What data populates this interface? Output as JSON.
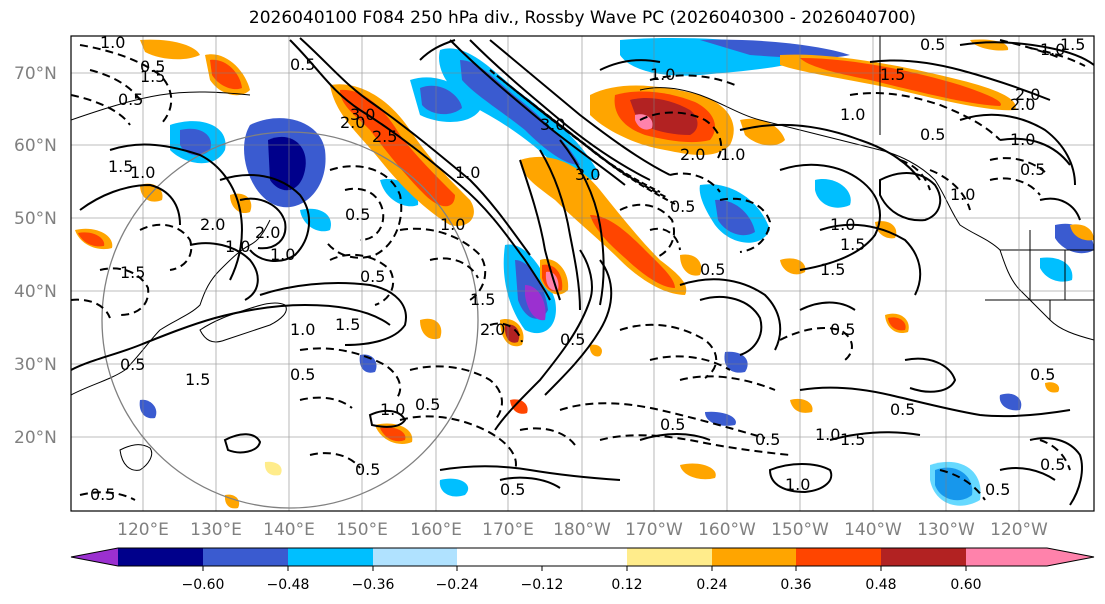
{
  "title": "2026040100 F084 250 hPa div., Rossby Wave PC (2026040300 - 2026040700)",
  "lat_labels": [
    "70°N",
    "60°N",
    "50°N",
    "40°N",
    "30°N",
    "20°N"
  ],
  "lon_labels": [
    "120°E",
    "130°E",
    "140°E",
    "150°E",
    "160°E",
    "170°E",
    "180°W",
    "170°W",
    "160°W",
    "150°W",
    "140°W",
    "130°W",
    "120°W"
  ],
  "colorbar": {
    "colors": [
      "#9b30d0",
      "#00008b",
      "#3a5bd0",
      "#00bfff",
      "#b0e2ff",
      "#ffffff",
      "#ffec8b",
      "#ffa500",
      "#ff4500",
      "#b22222",
      "#ff82ab"
    ],
    "ticks": [
      "−0.60",
      "−0.48",
      "−0.36",
      "−0.24",
      "−0.12",
      "0.12",
      "0.24",
      "0.36",
      "0.48",
      "0.60"
    ]
  },
  "contour_labels": [
    "1.0",
    "1.5",
    "0.5",
    "0.5",
    "1.0",
    "1.5",
    "2.0",
    "1.0",
    "1.0",
    "0.5",
    "1.5",
    "1.0",
    "0.5",
    "2.0",
    "2.5",
    "3.0",
    "0.5",
    "0.5",
    "1.0",
    "1.5",
    "2.0",
    "0.5",
    "1.0",
    "0.5",
    "1.5",
    "0.5",
    "1.5",
    "2.0",
    "3.0",
    "1.0",
    "1.5",
    "2.0",
    "1.0",
    "0.5",
    "1.0",
    "0.5",
    "0.5",
    "0.5",
    "1.0",
    "1.5",
    "0.5",
    "0.5",
    "1.0",
    "1.5",
    "1.0",
    "0.5",
    "0.5",
    "0.5",
    "0.5",
    "2.0",
    "3.0",
    "2.0",
    "1.5",
    "1.0",
    "0.5",
    "1.0",
    "1.5",
    "0.5",
    "0.5",
    "1.0",
    "0.5",
    "0.5",
    "1.0"
  ]
}
